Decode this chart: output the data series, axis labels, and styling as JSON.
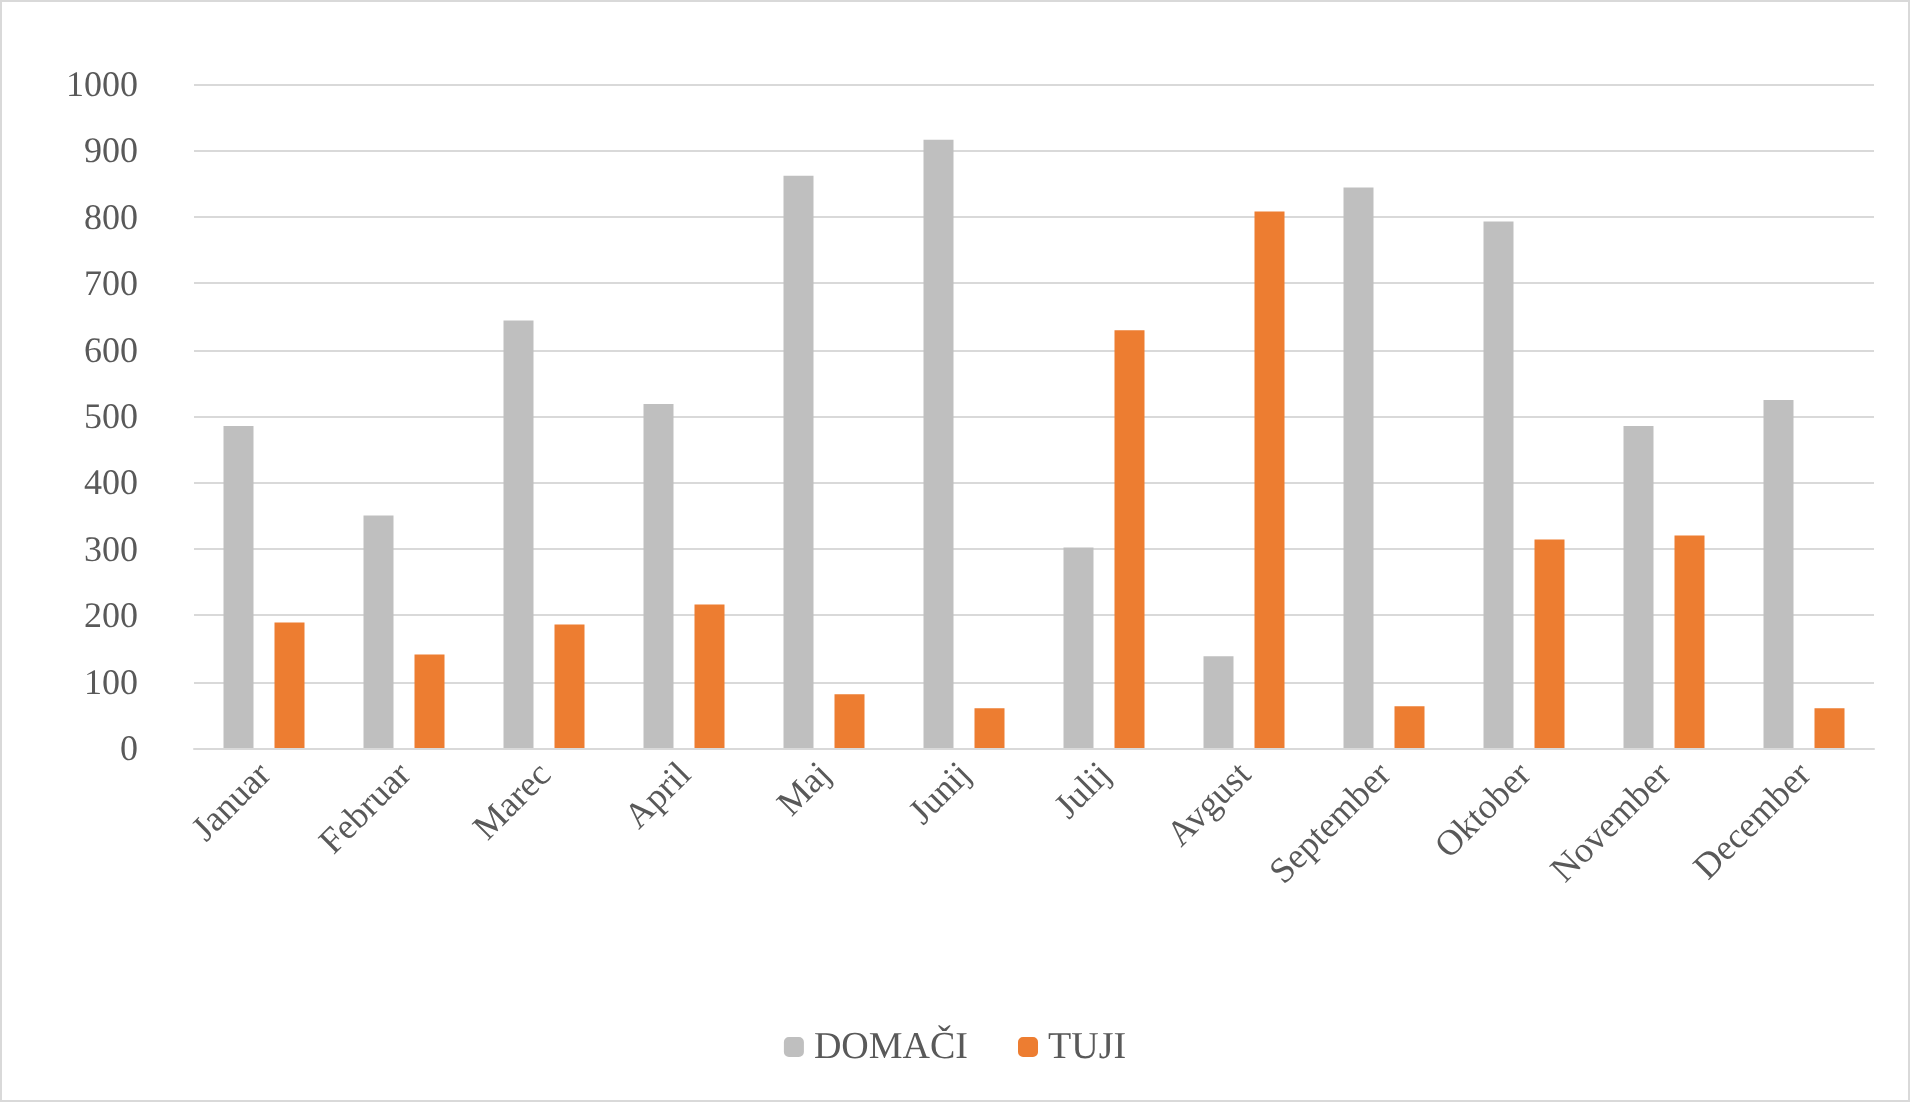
{
  "chart_data": {
    "type": "bar",
    "categories": [
      "Januar",
      "Februar",
      "Marec",
      "April",
      "Maj",
      "Junij",
      "Julij",
      "Avgust",
      "September",
      "Oktober",
      "November",
      "December"
    ],
    "series": [
      {
        "name": "DOMAČI",
        "color": "#bfbfbf",
        "values": [
          485,
          350,
          644,
          518,
          862,
          916,
          302,
          138,
          844,
          793,
          485,
          524
        ]
      },
      {
        "name": "TUJI",
        "color": "#ed7d31",
        "values": [
          189,
          141,
          186,
          216,
          81,
          60,
          629,
          808,
          63,
          314,
          320,
          60
        ]
      }
    ],
    "ylim": [
      0,
      1000
    ],
    "yticks": [
      0,
      100,
      200,
      300,
      400,
      500,
      600,
      700,
      800,
      900,
      1000
    ],
    "grid": "y",
    "legend": "bottom"
  }
}
